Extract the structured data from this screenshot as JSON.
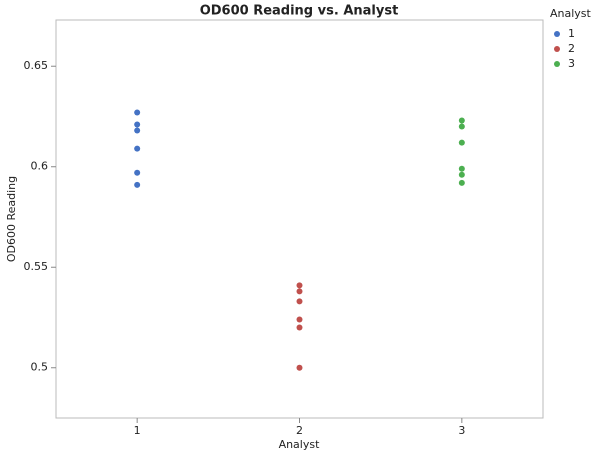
{
  "chart_data": {
    "type": "scatter",
    "title": "OD600 Reading vs. Analyst",
    "x_label": "Analyst",
    "y_label": "OD600 Reading",
    "legend_title": "Analyst",
    "xlim": [
      0.5,
      3.5
    ],
    "xticks": [
      1,
      2,
      3
    ],
    "ylim": [
      0.475,
      0.673
    ],
    "yticks": [
      0.5,
      0.55,
      0.6,
      0.65
    ],
    "series": [
      {
        "name": "1",
        "color": "#4472c4",
        "x": [
          1,
          1,
          1,
          1,
          1,
          1
        ],
        "values": [
          0.627,
          0.621,
          0.618,
          0.609,
          0.597,
          0.591
        ]
      },
      {
        "name": "2",
        "color": "#c0504d",
        "x": [
          2,
          2,
          2,
          2,
          2,
          2
        ],
        "values": [
          0.541,
          0.538,
          0.533,
          0.524,
          0.52,
          0.5
        ]
      },
      {
        "name": "3",
        "color": "#4caf50",
        "x": [
          3,
          3,
          3,
          3,
          3,
          3
        ],
        "values": [
          0.623,
          0.62,
          0.612,
          0.599,
          0.596,
          0.592
        ]
      }
    ]
  }
}
